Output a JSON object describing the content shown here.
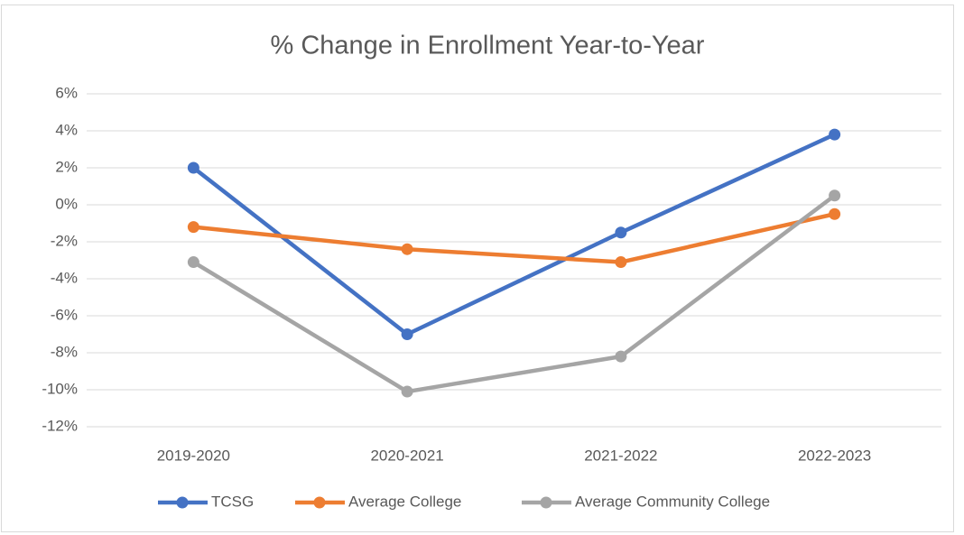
{
  "chart_data": {
    "type": "line",
    "title": "% Change in Enrollment Year-to-Year",
    "categories": [
      "2019-2020",
      "2020-2021",
      "2021-2022",
      "2022-2023"
    ],
    "series": [
      {
        "name": "TCSG",
        "color": "#4472c4",
        "values": [
          2,
          -7,
          -1.5,
          3.8
        ]
      },
      {
        "name": "Average College",
        "color": "#ed7d31",
        "values": [
          -1.2,
          -2.4,
          -3.1,
          -0.5
        ]
      },
      {
        "name": "Average Community College",
        "color": "#a5a5a5",
        "values": [
          -3.1,
          -10.1,
          -8.2,
          0.5
        ]
      }
    ],
    "ylim": [
      -12,
      6
    ],
    "yticks": [
      {
        "value": -12,
        "label": "-12%"
      },
      {
        "value": -10,
        "label": "-10%"
      },
      {
        "value": -8,
        "label": "-8%"
      },
      {
        "value": -6,
        "label": "-6%"
      },
      {
        "value": -4,
        "label": "-4%"
      },
      {
        "value": -2,
        "label": "-2%"
      },
      {
        "value": 0,
        "label": "0%"
      },
      {
        "value": 2,
        "label": "2%"
      },
      {
        "value": 4,
        "label": "4%"
      },
      {
        "value": 6,
        "label": "6%"
      }
    ],
    "grid": true,
    "legend": "bottom"
  }
}
